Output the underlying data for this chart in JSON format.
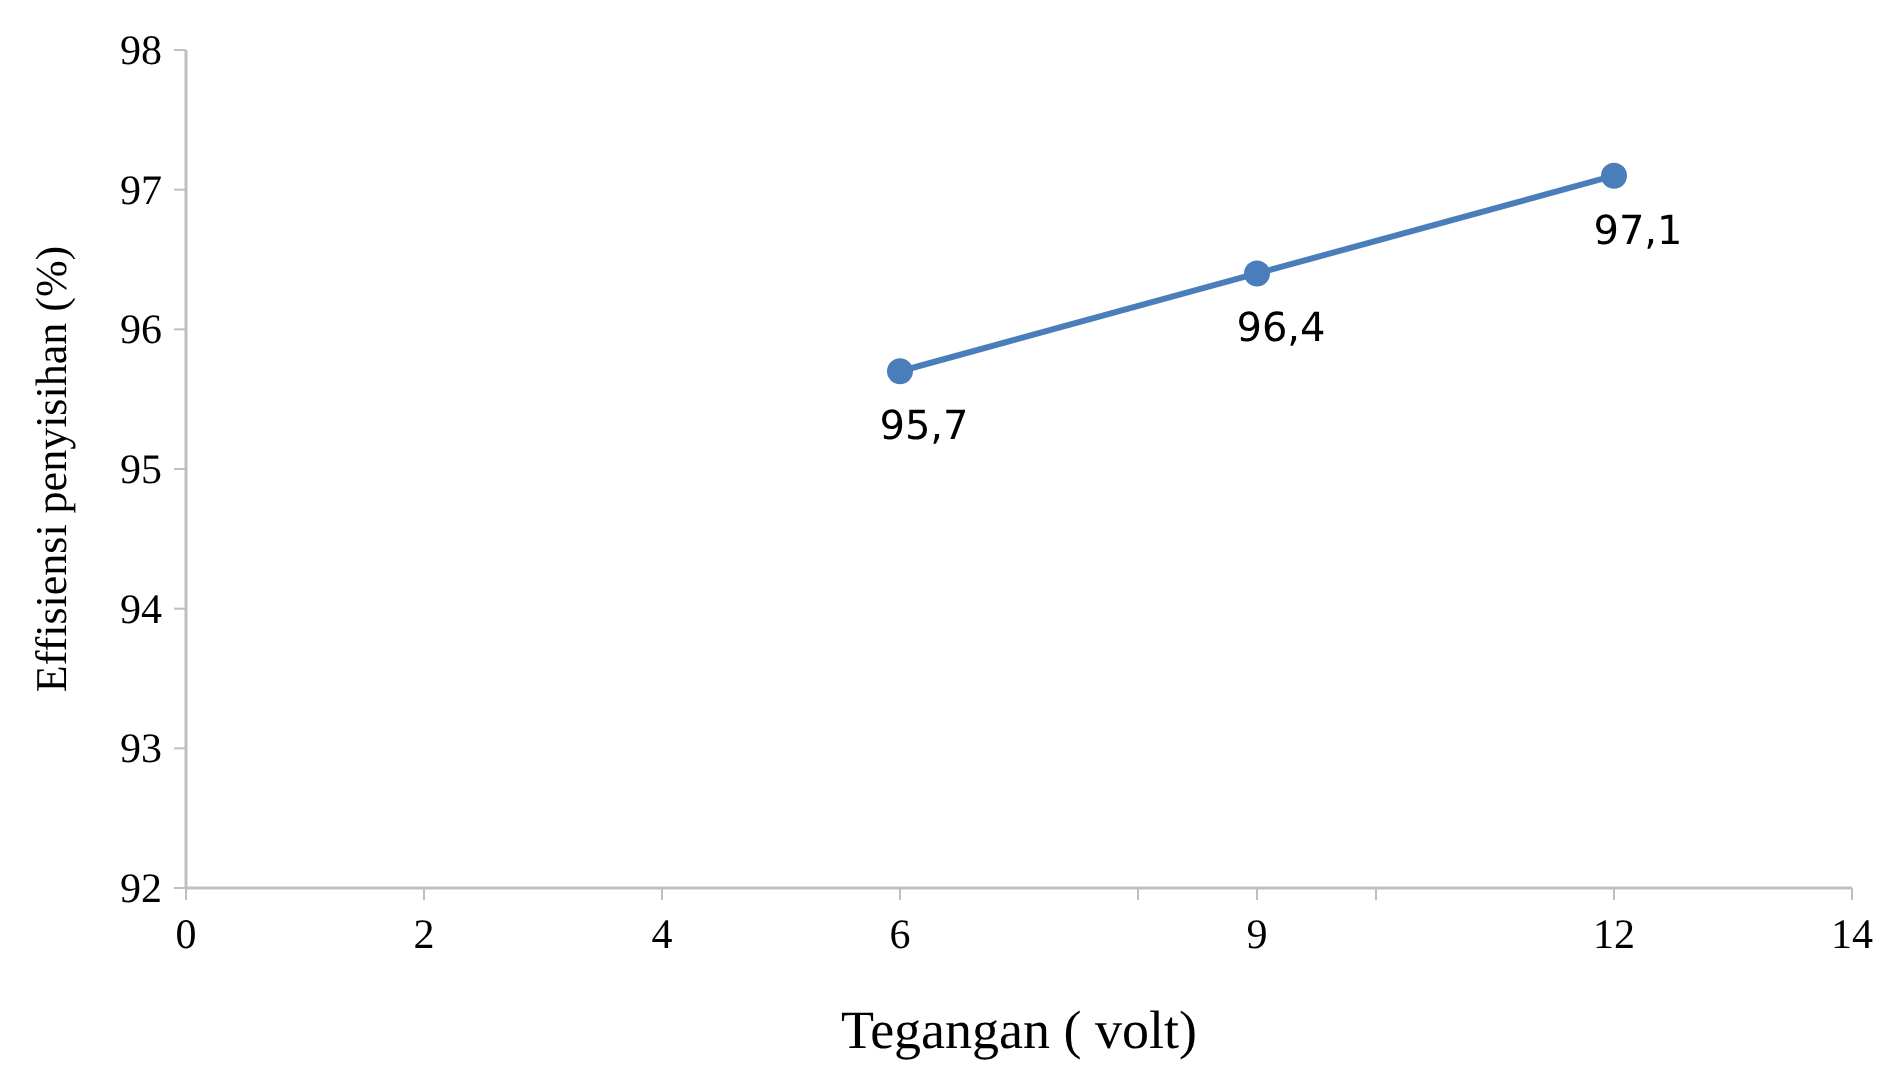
{
  "chart_data": {
    "type": "line",
    "xlabel": "Tegangan ( volt)",
    "ylabel": "Effisiensi penyisihan (%)",
    "x": [
      6,
      9,
      12
    ],
    "series": [
      {
        "color": "#4a7ebb",
        "values": [
          95.7,
          96.4,
          97.1
        ],
        "value_labels": [
          "95,7",
          "96,4",
          "97,1"
        ]
      }
    ],
    "xlim": [
      0,
      14
    ],
    "xticks": [
      0,
      2,
      4,
      6,
      {
        "value": 8,
        "label": null
      },
      9,
      {
        "value": 10,
        "label": null
      },
      12,
      14
    ],
    "ylim": [
      92,
      98
    ],
    "yticks": [
      92,
      93,
      94,
      95,
      96,
      97,
      98
    ],
    "grid": false,
    "marker": "circle",
    "line_style": "solid"
  }
}
